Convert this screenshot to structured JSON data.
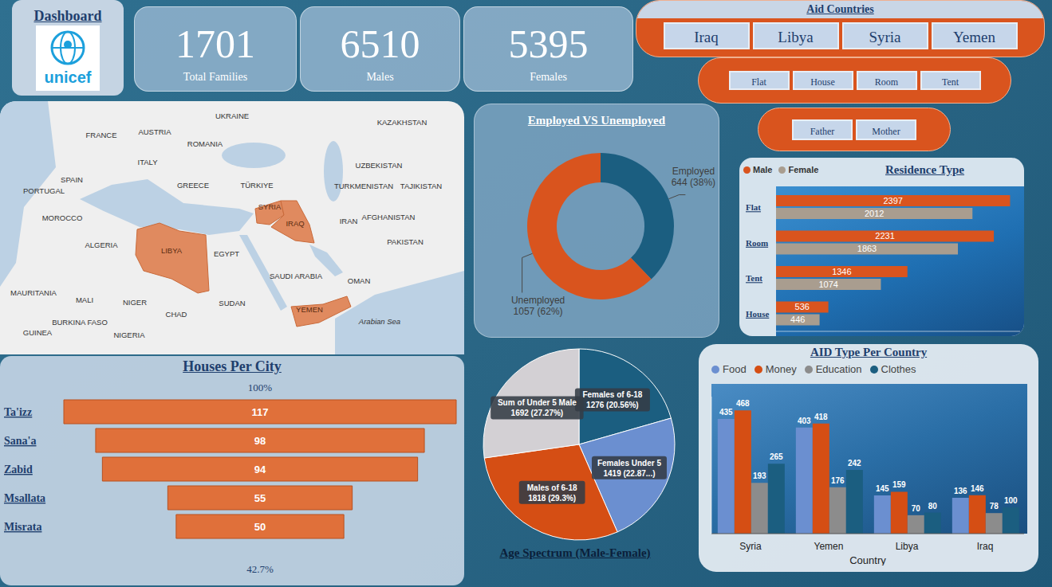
{
  "header": {
    "title": "Dashboard",
    "logo_text": "unicef"
  },
  "kpis": [
    {
      "value": 1701,
      "label": "Total Families"
    },
    {
      "value": 6510,
      "label": "Males"
    },
    {
      "value": 5395,
      "label": "Females"
    }
  ],
  "slicers": [
    {
      "title": "Aid Countries",
      "items": [
        "Iraq",
        "Libya",
        "Syria",
        "Yemen"
      ]
    },
    {
      "items": [
        "Flat",
        "House",
        "Room",
        "Tent"
      ]
    },
    {
      "items": [
        "Father",
        "Mother"
      ]
    }
  ],
  "map": {
    "labels": [
      "FRANCE",
      "UKRAINE",
      "KAZAKHSTAN",
      "AUSTRIA",
      "ROMANIA",
      "ITALY",
      "SPAIN",
      "PORTUGAL",
      "UZBEKISTAN",
      "GREECE",
      "TÜRKIYE",
      "TURKMENISTAN",
      "TAJIKISTAN",
      "SYRIA",
      "IRAQ",
      "AFGHANISTAN",
      "IRAN",
      "MOROCCO",
      "ALGERIA",
      "LIBYA",
      "EGYPT",
      "PAKISTAN",
      "SAUDI ARABIA",
      "OMAN",
      "MAURITANIA",
      "MALI",
      "NIGER",
      "SUDAN",
      "YEMEN",
      "CHAD",
      "BURKINA FASO",
      "Arabian Sea",
      "NIGERIA",
      "GUINEA"
    ],
    "highlighted": [
      "LIBYA",
      "SYRIA",
      "IRAQ",
      "YEMEN"
    ]
  },
  "chart_data": [
    {
      "type": "donut",
      "title": "Employed VS Unemployed",
      "categories": [
        "Employed",
        "Unemployed"
      ],
      "values": [
        644,
        1057
      ],
      "value_labels": [
        "644 (38%)",
        "1057 (62%)"
      ],
      "colors": [
        "#1b5e80",
        "#d9541e"
      ],
      "data_labels": true
    },
    {
      "type": "bar",
      "orientation": "horizontal",
      "title": "Residence Type",
      "categories": [
        "Flat",
        "Room",
        "Tent",
        "House"
      ],
      "series": [
        {
          "name": "Male",
          "color": "#d9541e",
          "values": [
            2397,
            2231,
            1346,
            536
          ]
        },
        {
          "name": "Female",
          "color": "#a99d8f",
          "values": [
            2012,
            1863,
            1074,
            446
          ]
        }
      ],
      "xlim": [
        0,
        2500
      ],
      "data_labels": true,
      "legend": "top-left",
      "tick_labels": "y"
    },
    {
      "type": "funnel",
      "title": "Houses Per City",
      "categories": [
        "Ta'izz",
        "Sana'a",
        "Zabid",
        "Msallata",
        "Misrata"
      ],
      "values": [
        117,
        98,
        94,
        55,
        50
      ],
      "color": "#e0703a",
      "data_labels": true,
      "annotations": [
        "100%",
        "42.7%"
      ]
    },
    {
      "type": "pie",
      "title": "Age Spectrum (Male-Female)",
      "categories": [
        "Females of 6-18",
        "Females Under 5",
        "Males of 6-18",
        "Sum of Under 5 Male"
      ],
      "values": [
        1276,
        1419,
        1818,
        1692
      ],
      "value_labels": [
        "1276 (20.56%)",
        "1419 (22.87...)",
        "1818 (29.3%)",
        "1692 (27.27%)"
      ],
      "colors": [
        "#1b5e80",
        "#6b8fd0",
        "#d54e14",
        "#d3d0d4"
      ],
      "data_labels": true
    },
    {
      "type": "bar",
      "title": "AID Type Per Country",
      "x_label": "Country",
      "categories": [
        "Syria",
        "Yemen",
        "Libya",
        "Iraq"
      ],
      "series": [
        {
          "name": "Food",
          "color": "#6b8fd0",
          "values": [
            435,
            403,
            145,
            136
          ]
        },
        {
          "name": "Money",
          "color": "#d54e14",
          "values": [
            468,
            418,
            159,
            146
          ]
        },
        {
          "name": "Education",
          "color": "#8c8c8c",
          "values": [
            193,
            176,
            70,
            78
          ]
        },
        {
          "name": "Clothes",
          "color": "#1b5e80",
          "values": [
            265,
            242,
            80,
            100
          ]
        }
      ],
      "ylim": [
        0,
        520
      ],
      "data_labels": true,
      "legend": "top-left",
      "tick_labels": "x"
    }
  ]
}
